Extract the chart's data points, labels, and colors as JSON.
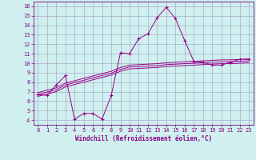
{
  "xlabel": "Windchill (Refroidissement éolien,°C)",
  "background_color": "#cff0ef",
  "grid_color": "#aaaacc",
  "line_color": "#990088",
  "xlim": [
    -0.5,
    23.5
  ],
  "ylim": [
    3.5,
    16.5
  ],
  "xticks": [
    0,
    1,
    2,
    3,
    4,
    5,
    6,
    7,
    8,
    9,
    10,
    11,
    12,
    13,
    14,
    15,
    16,
    17,
    18,
    19,
    20,
    21,
    22,
    23
  ],
  "yticks": [
    4,
    5,
    6,
    7,
    8,
    9,
    10,
    11,
    12,
    13,
    14,
    15,
    16
  ],
  "main_series": [
    6.7,
    6.6,
    7.7,
    8.7,
    4.1,
    4.7,
    4.7,
    4.1,
    6.6,
    11.1,
    11.0,
    12.6,
    13.1,
    14.8,
    15.9,
    14.7,
    12.4,
    10.2,
    10.1,
    9.8,
    9.8,
    10.1,
    10.4,
    10.4
  ],
  "band_series_1": [
    6.9,
    7.15,
    7.4,
    7.9,
    8.15,
    8.4,
    8.65,
    8.9,
    9.15,
    9.55,
    9.8,
    9.85,
    9.9,
    9.95,
    10.05,
    10.1,
    10.15,
    10.2,
    10.25,
    10.3,
    10.35,
    10.35,
    10.4,
    10.45
  ],
  "band_series_2": [
    6.7,
    6.95,
    7.2,
    7.7,
    7.95,
    8.2,
    8.45,
    8.7,
    8.95,
    9.35,
    9.6,
    9.65,
    9.7,
    9.75,
    9.85,
    9.9,
    9.95,
    10.0,
    10.05,
    10.1,
    10.15,
    10.15,
    10.2,
    10.25
  ],
  "band_series_3": [
    6.5,
    6.75,
    7.0,
    7.5,
    7.75,
    8.0,
    8.25,
    8.5,
    8.75,
    9.15,
    9.4,
    9.45,
    9.5,
    9.55,
    9.65,
    9.7,
    9.75,
    9.8,
    9.85,
    9.9,
    9.95,
    9.95,
    10.0,
    10.05
  ]
}
